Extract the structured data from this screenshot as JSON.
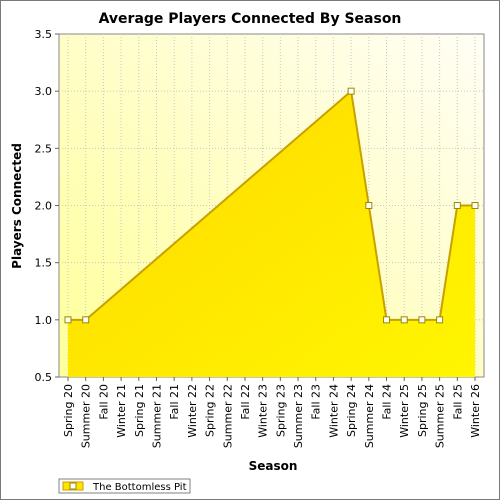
{
  "chart_data": {
    "type": "area",
    "title": "Average Players Connected By Season",
    "xlabel": "Season",
    "ylabel": "Players Connected",
    "ylim": [
      0.5,
      3.5
    ],
    "yticks": [
      "0.5",
      "1.0",
      "1.5",
      "2.0",
      "2.5",
      "3.0",
      "3.5"
    ],
    "grid": true,
    "legend_position": "bottom-left",
    "categories": [
      "Spring 20",
      "Summer 20",
      "Fall 20",
      "Winter 21",
      "Spring 21",
      "Summer 21",
      "Fall 21",
      "Winter 22",
      "Spring 22",
      "Summer 22",
      "Fall 22",
      "Winter 23",
      "Spring 23",
      "Summer 23",
      "Fall 23",
      "Winter 24",
      "Spring 24",
      "Summer 24",
      "Fall 24",
      "Winter 25",
      "Spring 25",
      "Summer 25",
      "Fall 25",
      "Winter 26"
    ],
    "series": [
      {
        "name": "The Bottomless Pit",
        "color": "#ffe400",
        "line_color": "#c8a000",
        "points": [
          {
            "x": "Spring 20",
            "y": 1.0
          },
          {
            "x": "Summer 20",
            "y": 1.0
          },
          {
            "x": "Spring 24",
            "y": 3.0
          },
          {
            "x": "Summer 24",
            "y": 2.0
          },
          {
            "x": "Fall 24",
            "y": 1.0
          },
          {
            "x": "Winter 25",
            "y": 1.0
          },
          {
            "x": "Spring 25",
            "y": 1.0
          },
          {
            "x": "Summer 25",
            "y": 1.0
          },
          {
            "x": "Fall 25",
            "y": 2.0
          },
          {
            "x": "Winter 26",
            "y": 2.0
          }
        ]
      }
    ]
  }
}
